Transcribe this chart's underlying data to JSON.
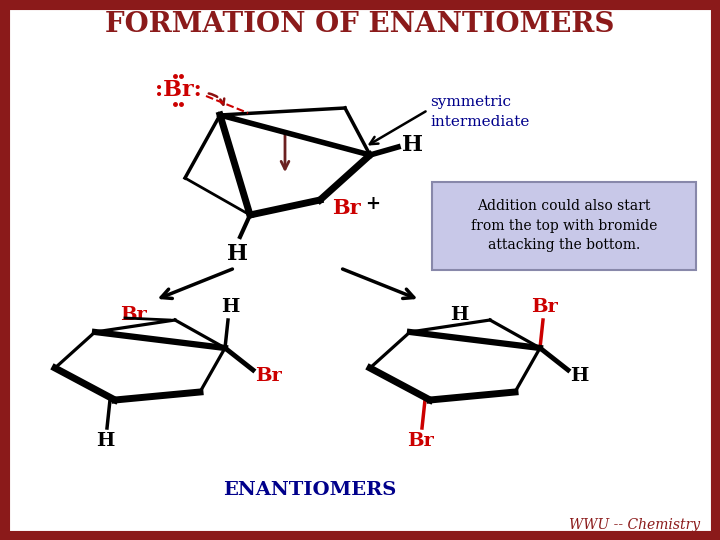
{
  "title": "FORMATION OF ENANTIOMERS",
  "title_color": "#8B1A1A",
  "title_fontsize": 20,
  "bg_color": "#FFFFFF",
  "border_color": "#8B1A1A",
  "border_width": 8,
  "footer": "WWU -- Chemistry",
  "footer_color": "#8B1A1A",
  "symmetric_label": "symmetric\nintermediate",
  "symmetric_color": "#00008B",
  "box_text": "Addition could also start\nfrom the top with bromide\nattacking the bottom.",
  "box_bg": "#C8C8E8",
  "box_edge": "#8888AA",
  "red": "#CC0000",
  "black": "#000000",
  "enantiomers_label": "ENANTIOMERS",
  "enantiomers_color": "#00008B"
}
